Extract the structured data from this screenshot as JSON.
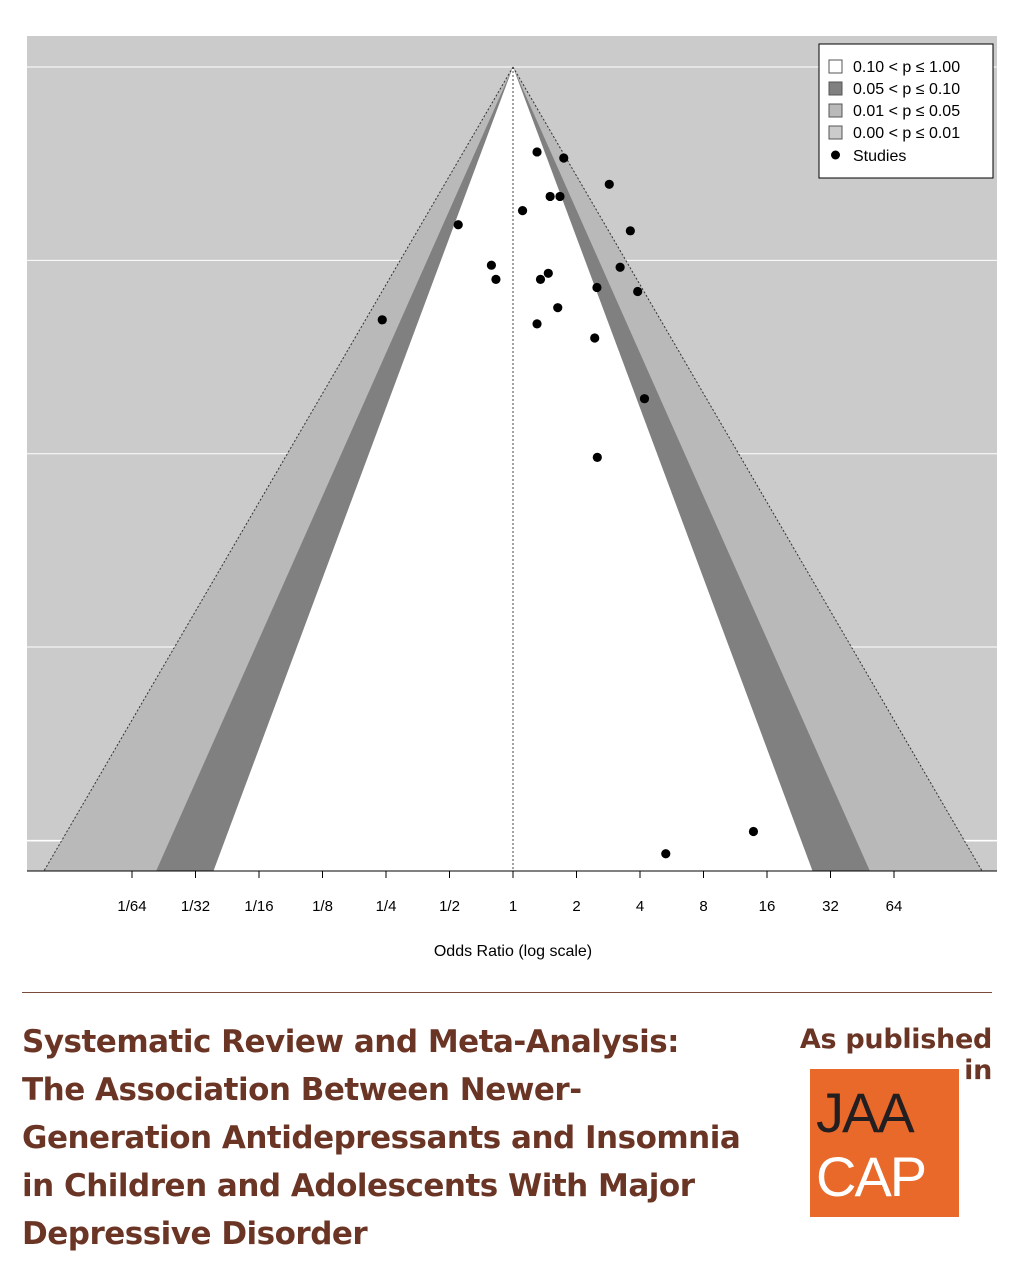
{
  "chart_data": {
    "type": "scatter",
    "subtype": "contour-enhanced funnel plot",
    "xlabel": "Odds Ratio (log scale)",
    "x_scale": "log2",
    "x_ticks": [
      "1/64",
      "1/32",
      "1/16",
      "1/8",
      "1/4",
      "1/2",
      "1",
      "2",
      "4",
      "8",
      "16",
      "32",
      "64"
    ],
    "xlim": [
      0.013,
      76
    ],
    "grid": true,
    "legend_position": "top-right",
    "legend": [
      {
        "label": "0.10 < p ≤ 1.00",
        "color": "#ffffff"
      },
      {
        "label": "0.05 < p ≤ 0.10",
        "color": "#808080"
      },
      {
        "label": "0.01 < p ≤ 0.05",
        "color": "#b9b9b9"
      },
      {
        "label": "0.00 < p ≤ 0.01",
        "color": "#cbcbcb"
      },
      {
        "label": "Studies",
        "marker": "point",
        "color": "#000000"
      }
    ],
    "contours_z": [
      1.645,
      1.96,
      2.576
    ],
    "series": [
      {
        "name": "Studies",
        "points": [
          {
            "or": 1.3,
            "se": 0.21
          },
          {
            "or": 1.74,
            "se": 0.225
          },
          {
            "or": 2.86,
            "se": 0.29
          },
          {
            "or": 1.5,
            "se": 0.32
          },
          {
            "or": 1.67,
            "se": 0.32
          },
          {
            "or": 1.11,
            "se": 0.355
          },
          {
            "or": 0.55,
            "se": 0.39
          },
          {
            "or": 3.6,
            "se": 0.405
          },
          {
            "or": 0.79,
            "se": 0.49
          },
          {
            "or": 3.22,
            "se": 0.495
          },
          {
            "or": 0.83,
            "se": 0.525
          },
          {
            "or": 1.35,
            "se": 0.525
          },
          {
            "or": 1.47,
            "se": 0.51
          },
          {
            "or": 2.5,
            "se": 0.545
          },
          {
            "or": 3.9,
            "se": 0.555
          },
          {
            "or": 1.63,
            "se": 0.595
          },
          {
            "or": 0.24,
            "se": 0.625
          },
          {
            "or": 1.3,
            "se": 0.635
          },
          {
            "or": 2.44,
            "se": 0.67
          },
          {
            "or": 4.2,
            "se": 0.82
          },
          {
            "or": 2.51,
            "se": 0.965
          },
          {
            "or": 13.8,
            "se": 1.89
          },
          {
            "or": 5.3,
            "se": 1.945
          }
        ]
      }
    ]
  },
  "footer": {
    "title_lines": [
      "Systematic Review and Meta-Analysis:",
      "The Association Between Newer-",
      "Generation Antidepressants and Insomnia",
      "in Children and Adolescents With Major",
      "Depressive Disorder"
    ],
    "published_label": "As published in",
    "logo_line1": "JAA",
    "logo_line2": "CAP",
    "accent_color": "#6b3525",
    "logo_color": "#e8692a"
  }
}
